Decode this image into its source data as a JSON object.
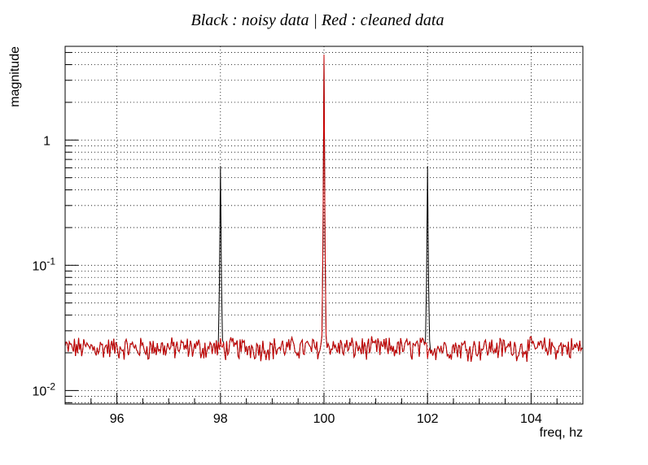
{
  "chart_data": {
    "type": "line",
    "title": "Black : noisy data | Red : cleaned data",
    "xlabel": "freq, hz",
    "ylabel": "magnitude",
    "xlim": [
      95,
      105
    ],
    "ylim": [
      0.0078,
      5.6
    ],
    "y_scale": "log",
    "grid": true,
    "x_ticks": [
      96,
      98,
      100,
      102,
      104
    ],
    "x_tick_labels": [
      "96",
      "98",
      "100",
      "102",
      "104"
    ],
    "y_tick_labels": [
      {
        "value": 1,
        "base": "1",
        "exp": ""
      },
      {
        "value": 0.1,
        "base": "10",
        "exp": "-1"
      },
      {
        "value": 0.01,
        "base": "10",
        "exp": "-2"
      }
    ],
    "noise_floor": 0.022,
    "series": [
      {
        "color": "#000000",
        "peaks": [
          {
            "x": 98,
            "y": 0.62
          },
          {
            "x": 100,
            "y": 4.8
          },
          {
            "x": 102,
            "y": 0.62
          }
        ]
      },
      {
        "color": "#cc0000",
        "peaks": [
          {
            "x": 100,
            "y": 4.8
          }
        ]
      }
    ]
  }
}
